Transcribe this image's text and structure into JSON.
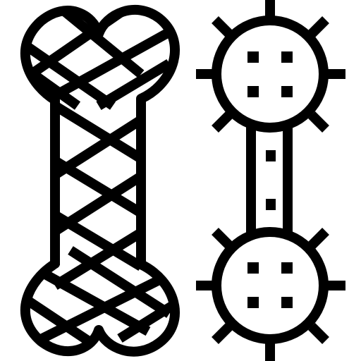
{
  "icons": [
    {
      "name": "wrapped-bone-icon"
    },
    {
      "name": "spiked-dumbbell-icon"
    }
  ],
  "colors": {
    "stroke": "#000000",
    "fill": "#ffffff",
    "background": "#ffffff"
  }
}
